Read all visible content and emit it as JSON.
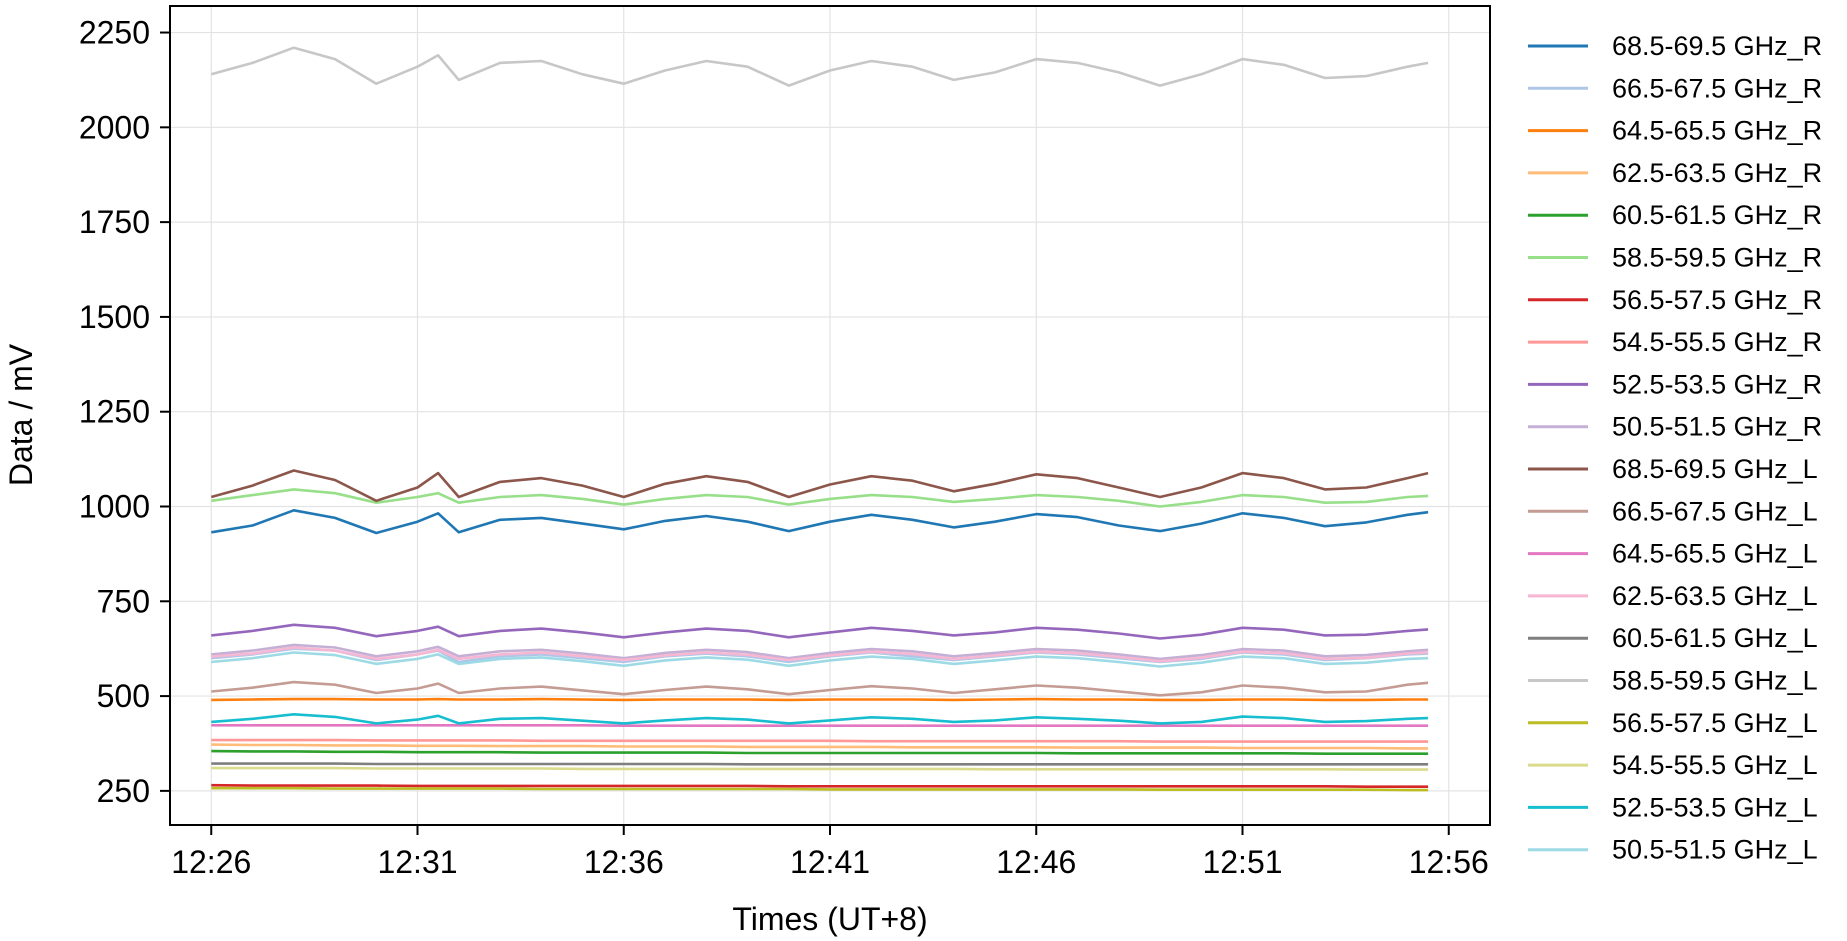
{
  "chart_data": {
    "type": "line",
    "title": "",
    "xlabel": "Times (UT+8)",
    "ylabel": "Data / mV",
    "xlim": [
      "12:25:00",
      "12:57:00"
    ],
    "ylim": [
      160,
      2320
    ],
    "x_ticks": [
      "12:26",
      "12:31",
      "12:36",
      "12:41",
      "12:46",
      "12:51",
      "12:56"
    ],
    "y_ticks": [
      250,
      500,
      750,
      1000,
      1250,
      1500,
      1750,
      2000,
      2250
    ],
    "grid": true,
    "legend_position": "right-outside",
    "sample_times": [
      "12:26:00",
      "12:27:00",
      "12:28:00",
      "12:29:00",
      "12:30:00",
      "12:31:00",
      "12:31:30",
      "12:32:00",
      "12:33:00",
      "12:34:00",
      "12:35:00",
      "12:36:00",
      "12:37:00",
      "12:38:00",
      "12:39:00",
      "12:40:00",
      "12:41:00",
      "12:42:00",
      "12:43:00",
      "12:44:00",
      "12:45:00",
      "12:46:00",
      "12:47:00",
      "12:48:00",
      "12:49:00",
      "12:50:00",
      "12:51:00",
      "12:52:00",
      "12:53:00",
      "12:54:00",
      "12:55:00",
      "12:55:30"
    ],
    "series": [
      {
        "name": "68.5-69.5 GHz_R",
        "color": "#1f77b4",
        "values": [
          932,
          950,
          990,
          970,
          930,
          960,
          982,
          932,
          965,
          970,
          955,
          940,
          962,
          975,
          960,
          935,
          960,
          978,
          965,
          945,
          960,
          980,
          972,
          950,
          935,
          955,
          982,
          970,
          948,
          958,
          978,
          985
        ]
      },
      {
        "name": "66.5-67.5 GHz_R",
        "color": "#aec7e8",
        "values": [
          600,
          610,
          625,
          620,
          595,
          610,
          620,
          590,
          605,
          610,
          600,
          590,
          605,
          612,
          605,
          590,
          605,
          615,
          605,
          595,
          605,
          615,
          610,
          600,
          590,
          598,
          615,
          610,
          595,
          600,
          610,
          612
        ]
      },
      {
        "name": "64.5-65.5 GHz_R",
        "color": "#ff7f0e",
        "values": [
          490,
          491,
          492,
          492,
          491,
          491,
          492,
          491,
          491,
          492,
          491,
          490,
          491,
          491,
          491,
          490,
          491,
          491,
          491,
          490,
          491,
          492,
          491,
          491,
          490,
          490,
          491,
          491,
          490,
          490,
          491,
          491
        ]
      },
      {
        "name": "62.5-63.5 GHz_R",
        "color": "#ffbb78",
        "values": [
          372,
          371,
          371,
          370,
          370,
          369,
          369,
          369,
          368,
          368,
          368,
          367,
          367,
          367,
          366,
          366,
          366,
          366,
          365,
          365,
          365,
          365,
          364,
          364,
          364,
          364,
          363,
          363,
          363,
          363,
          362,
          362
        ]
      },
      {
        "name": "60.5-61.5 GHz_R",
        "color": "#2ca02c",
        "values": [
          355,
          354,
          354,
          353,
          353,
          352,
          352,
          352,
          352,
          351,
          351,
          351,
          351,
          351,
          350,
          350,
          350,
          350,
          350,
          350,
          350,
          350,
          349,
          349,
          349,
          349,
          349,
          349,
          348,
          348,
          348,
          348
        ]
      },
      {
        "name": "58.5-59.5 GHz_R",
        "color": "#98df8a",
        "values": [
          1015,
          1030,
          1045,
          1035,
          1010,
          1025,
          1035,
          1010,
          1025,
          1030,
          1020,
          1005,
          1020,
          1030,
          1025,
          1005,
          1020,
          1030,
          1025,
          1012,
          1020,
          1030,
          1025,
          1015,
          1000,
          1012,
          1030,
          1025,
          1010,
          1012,
          1025,
          1028
        ]
      },
      {
        "name": "56.5-57.5 GHz_R",
        "color": "#d62728",
        "values": [
          265,
          264,
          264,
          264,
          264,
          263,
          263,
          263,
          263,
          263,
          263,
          263,
          263,
          263,
          263,
          262,
          262,
          262,
          262,
          262,
          262,
          262,
          262,
          262,
          262,
          262,
          262,
          262,
          262,
          261,
          261,
          261
        ]
      },
      {
        "name": "54.5-55.5 GHz_R",
        "color": "#ff9896",
        "values": [
          384,
          384,
          384,
          384,
          383,
          383,
          383,
          383,
          383,
          382,
          382,
          382,
          382,
          382,
          382,
          382,
          382,
          381,
          381,
          381,
          381,
          381,
          381,
          381,
          380,
          380,
          380,
          380,
          380,
          380,
          380,
          380
        ]
      },
      {
        "name": "52.5-53.5 GHz_R",
        "color": "#9467bd",
        "values": [
          660,
          672,
          688,
          680,
          658,
          672,
          683,
          658,
          672,
          678,
          668,
          655,
          668,
          678,
          672,
          655,
          668,
          680,
          672,
          660,
          668,
          680,
          675,
          665,
          652,
          662,
          680,
          675,
          660,
          662,
          672,
          676
        ]
      },
      {
        "name": "50.5-51.5 GHz_R",
        "color": "#c5b0d5",
        "values": [
          610,
          620,
          635,
          628,
          605,
          618,
          630,
          605,
          618,
          622,
          612,
          600,
          614,
          622,
          616,
          600,
          614,
          624,
          618,
          605,
          614,
          624,
          620,
          610,
          598,
          608,
          624,
          620,
          605,
          608,
          618,
          622
        ]
      },
      {
        "name": "68.5-69.5 GHz_L",
        "color": "#8c564b",
        "values": [
          1025,
          1055,
          1095,
          1070,
          1015,
          1050,
          1088,
          1025,
          1065,
          1075,
          1055,
          1025,
          1060,
          1080,
          1065,
          1025,
          1058,
          1080,
          1068,
          1040,
          1060,
          1085,
          1075,
          1050,
          1025,
          1050,
          1088,
          1075,
          1045,
          1050,
          1075,
          1088
        ]
      },
      {
        "name": "66.5-67.5 GHz_L",
        "color": "#c49c94",
        "values": [
          512,
          522,
          537,
          530,
          508,
          520,
          533,
          508,
          520,
          525,
          515,
          505,
          516,
          525,
          518,
          505,
          516,
          526,
          520,
          508,
          518,
          528,
          522,
          512,
          502,
          510,
          528,
          522,
          510,
          512,
          530,
          535
        ]
      },
      {
        "name": "64.5-65.5 GHz_L",
        "color": "#e377c2",
        "values": [
          423,
          423,
          423,
          423,
          423,
          423,
          423,
          423,
          423,
          423,
          423,
          422,
          422,
          422,
          422,
          422,
          422,
          422,
          422,
          422,
          422,
          422,
          422,
          422,
          422,
          422,
          422,
          422,
          422,
          422,
          422,
          422
        ]
      },
      {
        "name": "62.5-63.5 GHz_L",
        "color": "#f7b6d2",
        "values": [
          604,
          612,
          628,
          620,
          598,
          610,
          622,
          598,
          610,
          615,
          605,
          595,
          607,
          615,
          609,
          595,
          607,
          617,
          611,
          598,
          607,
          617,
          613,
          603,
          592,
          601,
          617,
          613,
          598,
          601,
          612,
          615
        ]
      },
      {
        "name": "60.5-61.5 GHz_L",
        "color": "#7f7f7f",
        "values": [
          322,
          322,
          322,
          322,
          321,
          321,
          321,
          321,
          321,
          321,
          321,
          321,
          321,
          321,
          320,
          320,
          320,
          320,
          320,
          320,
          320,
          320,
          320,
          320,
          320,
          320,
          320,
          320,
          320,
          320,
          320,
          320
        ]
      },
      {
        "name": "58.5-59.5 GHz_L",
        "color": "#c7c7c7",
        "values": [
          2140,
          2170,
          2210,
          2180,
          2115,
          2160,
          2190,
          2125,
          2170,
          2175,
          2140,
          2115,
          2150,
          2175,
          2160,
          2110,
          2150,
          2175,
          2160,
          2125,
          2145,
          2180,
          2170,
          2145,
          2110,
          2140,
          2180,
          2165,
          2130,
          2135,
          2160,
          2170
        ]
      },
      {
        "name": "56.5-57.5 GHz_L",
        "color": "#bcbd22",
        "values": [
          257,
          257,
          257,
          256,
          256,
          256,
          256,
          256,
          256,
          255,
          255,
          255,
          255,
          255,
          255,
          255,
          254,
          254,
          254,
          254,
          254,
          254,
          254,
          254,
          253,
          253,
          253,
          253,
          253,
          253,
          252,
          252
        ]
      },
      {
        "name": "54.5-55.5 GHz_L",
        "color": "#dbdb8d",
        "values": [
          310,
          310,
          310,
          310,
          309,
          309,
          309,
          309,
          309,
          309,
          308,
          308,
          308,
          308,
          308,
          308,
          308,
          308,
          308,
          308,
          307,
          307,
          307,
          307,
          307,
          307,
          307,
          307,
          307,
          306,
          306,
          306
        ]
      },
      {
        "name": "52.5-53.5 GHz_L",
        "color": "#17becf",
        "values": [
          432,
          440,
          452,
          445,
          428,
          438,
          448,
          428,
          440,
          442,
          435,
          428,
          436,
          442,
          438,
          428,
          436,
          444,
          440,
          432,
          436,
          444,
          440,
          435,
          428,
          432,
          446,
          442,
          432,
          434,
          440,
          442
        ]
      },
      {
        "name": "50.5-51.5 GHz_L",
        "color": "#9edae5",
        "values": [
          590,
          600,
          615,
          608,
          585,
          598,
          610,
          585,
          598,
          602,
          592,
          580,
          594,
          602,
          596,
          580,
          594,
          604,
          598,
          585,
          594,
          604,
          600,
          590,
          578,
          588,
          604,
          600,
          585,
          588,
          598,
          600
        ]
      }
    ]
  }
}
